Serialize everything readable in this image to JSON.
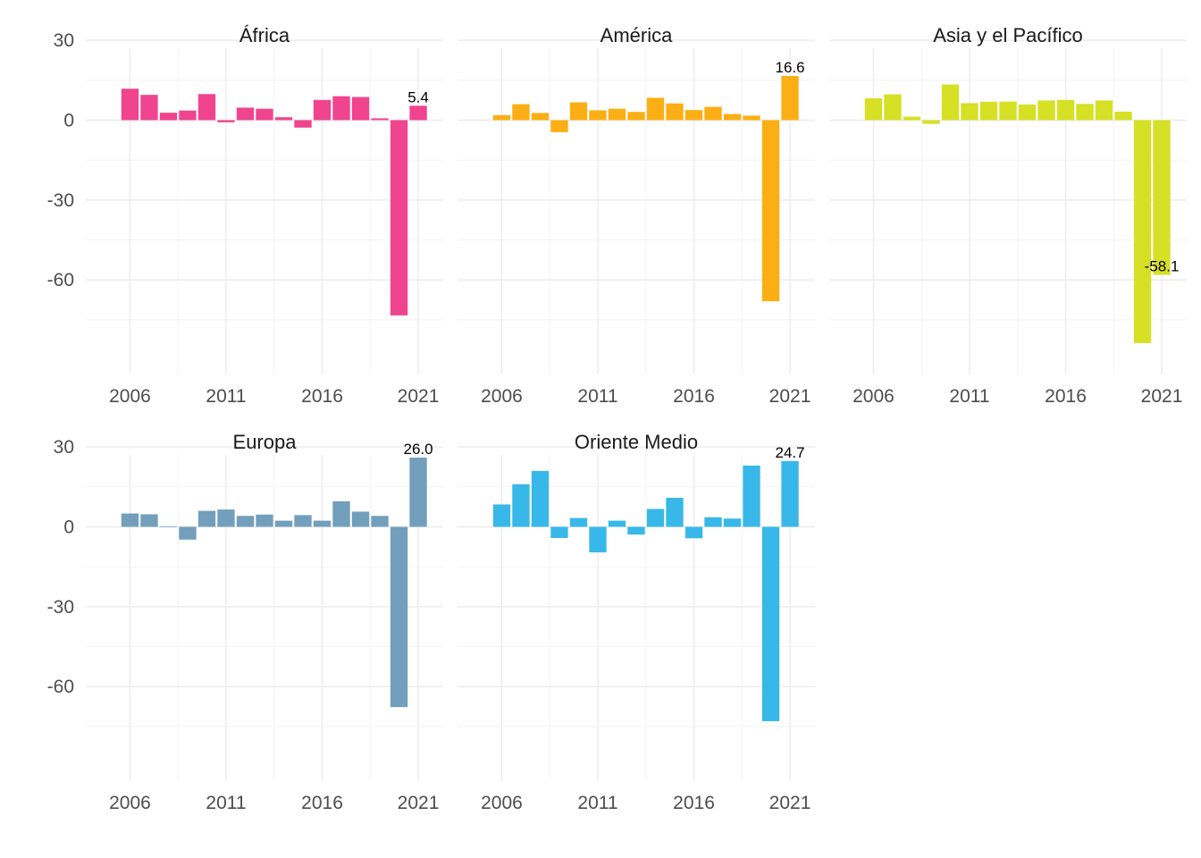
{
  "chart_data": {
    "type": "bar",
    "layout": "facet-grid",
    "x_ticks": [
      "2006",
      "2011",
      "2016",
      "2021"
    ],
    "y_ticks": [
      "30",
      "0",
      "-30",
      "-60"
    ],
    "ylim": [
      -90,
      30
    ],
    "years": [
      2006,
      2007,
      2008,
      2009,
      2010,
      2011,
      2012,
      2013,
      2014,
      2015,
      2016,
      2017,
      2018,
      2019,
      2020,
      2021
    ],
    "panels": [
      {
        "name": "África",
        "color": "#f0448f",
        "values": [
          11.8,
          9.5,
          2.8,
          3.6,
          9.8,
          -0.8,
          4.7,
          4.3,
          1.1,
          -2.8,
          7.6,
          9.0,
          8.7,
          0.7,
          -73.3,
          5.4
        ],
        "label": {
          "year": 2021,
          "text": "5.4"
        }
      },
      {
        "name": "América",
        "color": "#fbaf14",
        "values": [
          1.9,
          6.0,
          2.7,
          -4.5,
          6.7,
          3.7,
          4.3,
          3.1,
          8.4,
          6.3,
          3.8,
          5.0,
          2.3,
          1.7,
          -68.0,
          16.6
        ],
        "label": {
          "year": 2021,
          "text": "16.6"
        }
      },
      {
        "name": "Asia y el Pacífico",
        "color": "#d6e025",
        "values": [
          8.2,
          9.7,
          1.3,
          -1.4,
          13.4,
          6.4,
          6.9,
          7.0,
          5.9,
          7.4,
          7.6,
          6.1,
          7.4,
          3.2,
          -83.7,
          -58.1
        ],
        "label": {
          "year": 2021,
          "text": "-58.1"
        }
      },
      {
        "name": "Europa",
        "color": "#729fbb",
        "values": [
          5.0,
          4.7,
          0.2,
          -4.8,
          6.0,
          6.5,
          4.1,
          4.6,
          2.3,
          4.4,
          2.3,
          9.6,
          5.7,
          4.1,
          -67.7,
          26.0
        ],
        "label": {
          "year": 2021,
          "text": "26.0"
        }
      },
      {
        "name": "Oriente Medio",
        "color": "#38b8e8",
        "values": [
          8.4,
          16.0,
          21.0,
          -4.2,
          3.3,
          -9.6,
          2.3,
          -2.9,
          6.7,
          10.9,
          -4.3,
          3.6,
          3.1,
          23.0,
          -73.0,
          24.7
        ],
        "label": {
          "year": 2021,
          "text": "24.7"
        }
      }
    ]
  }
}
